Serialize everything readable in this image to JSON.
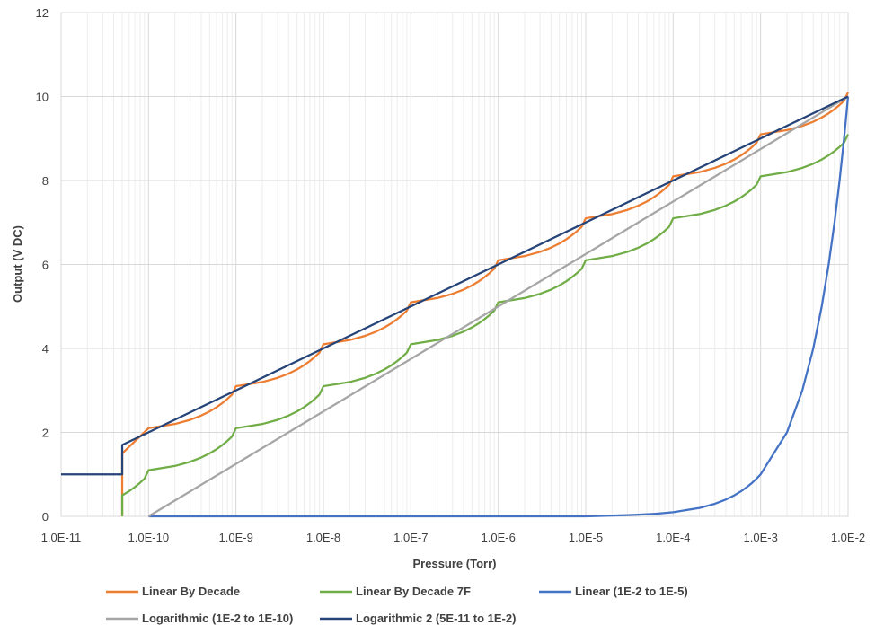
{
  "chart_data": {
    "type": "line",
    "title": "",
    "xlabel": "Pressure (Torr)",
    "ylabel": "Output (V DC)",
    "x_scale": "log",
    "xlim": [
      1e-11,
      0.01
    ],
    "ylim": [
      0,
      12
    ],
    "grid": true,
    "legend_position": "bottom",
    "x_tick_labels": [
      "1.0E-11",
      "1.0E-10",
      "1.0E-9",
      "1.0E-8",
      "1.0E-7",
      "1.0E-6",
      "1.0E-5",
      "1.0E-4",
      "1.0E-3",
      "1.0E-2"
    ],
    "y_tick_labels": [
      "0",
      "2",
      "4",
      "6",
      "8",
      "10",
      "12"
    ],
    "x_ticks": [
      1e-11,
      1e-10,
      1e-09,
      1e-08,
      1e-07,
      1e-06,
      1e-05,
      0.0001,
      0.001,
      0.01
    ],
    "y_ticks": [
      0,
      2,
      4,
      6,
      8,
      10,
      12
    ],
    "series": [
      {
        "name": "Linear By Decade",
        "color": "#ED7D31",
        "points": [
          [
            5e-11,
            0
          ],
          [
            5e-11,
            1.5
          ],
          [
            1e-10,
            2.1
          ],
          [
            2e-10,
            2.2
          ],
          [
            3e-10,
            2.3
          ],
          [
            4e-10,
            2.4
          ],
          [
            5e-10,
            2.5
          ],
          [
            6e-10,
            2.6
          ],
          [
            7e-10,
            2.7
          ],
          [
            8e-10,
            2.8
          ],
          [
            9e-10,
            2.9
          ],
          [
            1e-09,
            3.1
          ],
          [
            2e-09,
            3.2
          ],
          [
            3e-09,
            3.3
          ],
          [
            4e-09,
            3.4
          ],
          [
            5e-09,
            3.5
          ],
          [
            6e-09,
            3.6
          ],
          [
            7e-09,
            3.7
          ],
          [
            8e-09,
            3.8
          ],
          [
            9e-09,
            3.9
          ],
          [
            1e-08,
            4.1
          ],
          [
            2e-08,
            4.2
          ],
          [
            3e-08,
            4.3
          ],
          [
            4e-08,
            4.4
          ],
          [
            5e-08,
            4.5
          ],
          [
            6e-08,
            4.6
          ],
          [
            7e-08,
            4.7
          ],
          [
            8e-08,
            4.8
          ],
          [
            9e-08,
            4.9
          ],
          [
            1e-07,
            5.1
          ],
          [
            2e-07,
            5.2
          ],
          [
            3e-07,
            5.3
          ],
          [
            4e-07,
            5.4
          ],
          [
            5e-07,
            5.5
          ],
          [
            6e-07,
            5.6
          ],
          [
            7e-07,
            5.7
          ],
          [
            8e-07,
            5.8
          ],
          [
            9e-07,
            5.9
          ],
          [
            1e-06,
            6.1
          ],
          [
            2e-06,
            6.2
          ],
          [
            3e-06,
            6.3
          ],
          [
            4e-06,
            6.4
          ],
          [
            5e-06,
            6.5
          ],
          [
            6e-06,
            6.6
          ],
          [
            7e-06,
            6.7
          ],
          [
            8e-06,
            6.8
          ],
          [
            9e-06,
            6.9
          ],
          [
            1e-05,
            7.1
          ],
          [
            2e-05,
            7.2
          ],
          [
            3e-05,
            7.3
          ],
          [
            4e-05,
            7.4
          ],
          [
            5e-05,
            7.5
          ],
          [
            6e-05,
            7.6
          ],
          [
            7e-05,
            7.7
          ],
          [
            8e-05,
            7.8
          ],
          [
            9e-05,
            7.9
          ],
          [
            0.0001,
            8.1
          ],
          [
            0.0002,
            8.2
          ],
          [
            0.0003,
            8.3
          ],
          [
            0.0004,
            8.4
          ],
          [
            0.0005,
            8.5
          ],
          [
            0.0006,
            8.6
          ],
          [
            0.0007,
            8.7
          ],
          [
            0.0008,
            8.8
          ],
          [
            0.0009,
            8.9
          ],
          [
            0.001,
            9.1
          ],
          [
            0.002,
            9.2
          ],
          [
            0.003,
            9.3
          ],
          [
            0.004,
            9.4
          ],
          [
            0.005,
            9.5
          ],
          [
            0.006,
            9.6
          ],
          [
            0.007,
            9.7
          ],
          [
            0.008,
            9.8
          ],
          [
            0.009,
            9.9
          ],
          [
            0.01,
            10.1
          ]
        ]
      },
      {
        "name": "Linear By Decade 7F",
        "color": "#70AD47",
        "points": [
          [
            5e-11,
            0
          ],
          [
            5e-11,
            0.5
          ],
          [
            6e-11,
            0.6
          ],
          [
            7e-11,
            0.7
          ],
          [
            8e-11,
            0.8
          ],
          [
            9e-11,
            0.9
          ],
          [
            1e-10,
            1.1
          ],
          [
            2e-10,
            1.2
          ],
          [
            3e-10,
            1.3
          ],
          [
            4e-10,
            1.4
          ],
          [
            5e-10,
            1.5
          ],
          [
            6e-10,
            1.6
          ],
          [
            7e-10,
            1.7
          ],
          [
            8e-10,
            1.8
          ],
          [
            9e-10,
            1.9
          ],
          [
            1e-09,
            2.1
          ],
          [
            2e-09,
            2.2
          ],
          [
            3e-09,
            2.3
          ],
          [
            4e-09,
            2.4
          ],
          [
            5e-09,
            2.5
          ],
          [
            6e-09,
            2.6
          ],
          [
            7e-09,
            2.7
          ],
          [
            8e-09,
            2.8
          ],
          [
            9e-09,
            2.9
          ],
          [
            1e-08,
            3.1
          ],
          [
            2e-08,
            3.2
          ],
          [
            3e-08,
            3.3
          ],
          [
            4e-08,
            3.4
          ],
          [
            5e-08,
            3.5
          ],
          [
            6e-08,
            3.6
          ],
          [
            7e-08,
            3.7
          ],
          [
            8e-08,
            3.8
          ],
          [
            9e-08,
            3.9
          ],
          [
            1e-07,
            4.1
          ],
          [
            2e-07,
            4.2
          ],
          [
            3e-07,
            4.3
          ],
          [
            4e-07,
            4.4
          ],
          [
            5e-07,
            4.5
          ],
          [
            6e-07,
            4.6
          ],
          [
            7e-07,
            4.7
          ],
          [
            8e-07,
            4.8
          ],
          [
            9e-07,
            4.9
          ],
          [
            1e-06,
            5.1
          ],
          [
            2e-06,
            5.2
          ],
          [
            3e-06,
            5.3
          ],
          [
            4e-06,
            5.4
          ],
          [
            5e-06,
            5.5
          ],
          [
            6e-06,
            5.6
          ],
          [
            7e-06,
            5.7
          ],
          [
            8e-06,
            5.8
          ],
          [
            9e-06,
            5.9
          ],
          [
            1e-05,
            6.1
          ],
          [
            2e-05,
            6.2
          ],
          [
            3e-05,
            6.3
          ],
          [
            4e-05,
            6.4
          ],
          [
            5e-05,
            6.5
          ],
          [
            6e-05,
            6.6
          ],
          [
            7e-05,
            6.7
          ],
          [
            8e-05,
            6.8
          ],
          [
            9e-05,
            6.9
          ],
          [
            0.0001,
            7.1
          ],
          [
            0.0002,
            7.2
          ],
          [
            0.0003,
            7.3
          ],
          [
            0.0004,
            7.4
          ],
          [
            0.0005,
            7.5
          ],
          [
            0.0006,
            7.6
          ],
          [
            0.0007,
            7.7
          ],
          [
            0.0008,
            7.8
          ],
          [
            0.0009,
            7.9
          ],
          [
            0.001,
            8.1
          ],
          [
            0.002,
            8.2
          ],
          [
            0.003,
            8.3
          ],
          [
            0.004,
            8.4
          ],
          [
            0.005,
            8.5
          ],
          [
            0.006,
            8.6
          ],
          [
            0.007,
            8.7
          ],
          [
            0.008,
            8.8
          ],
          [
            0.009,
            8.9
          ],
          [
            0.01,
            9.1
          ]
        ]
      },
      {
        "name": "Linear (1E-2 to 1E-5)",
        "color": "#4472C4",
        "points": [
          [
            1e-10,
            0
          ],
          [
            1e-05,
            0.001
          ],
          [
            2e-05,
            0.02
          ],
          [
            3e-05,
            0.03
          ],
          [
            4e-05,
            0.04
          ],
          [
            5e-05,
            0.05
          ],
          [
            6e-05,
            0.06
          ],
          [
            7e-05,
            0.07
          ],
          [
            8e-05,
            0.08
          ],
          [
            9e-05,
            0.09
          ],
          [
            0.0001,
            0.1
          ],
          [
            0.0002,
            0.2
          ],
          [
            0.0003,
            0.3
          ],
          [
            0.0004,
            0.4
          ],
          [
            0.0005,
            0.5
          ],
          [
            0.0006,
            0.6
          ],
          [
            0.0007,
            0.7
          ],
          [
            0.0008,
            0.8
          ],
          [
            0.0009,
            0.9
          ],
          [
            0.001,
            1.0
          ],
          [
            0.002,
            2.0
          ],
          [
            0.003,
            3.0
          ],
          [
            0.004,
            4.0
          ],
          [
            0.005,
            5.0
          ],
          [
            0.006,
            6.0
          ],
          [
            0.007,
            7.0
          ],
          [
            0.008,
            8.0
          ],
          [
            0.009,
            9.0
          ],
          [
            0.01,
            10.0
          ]
        ]
      },
      {
        "name": "Logarithmic (1E-2 to 1E-10)",
        "color": "#A5A5A5",
        "points": [
          [
            1e-10,
            0
          ],
          [
            0.01,
            10
          ]
        ]
      },
      {
        "name": "Logarithmic 2 (5E-11 to 1E-2)",
        "color": "#264478",
        "points": [
          [
            1e-11,
            1
          ],
          [
            5e-11,
            1
          ],
          [
            5e-11,
            1.7
          ],
          [
            0.01,
            10
          ]
        ]
      }
    ]
  }
}
